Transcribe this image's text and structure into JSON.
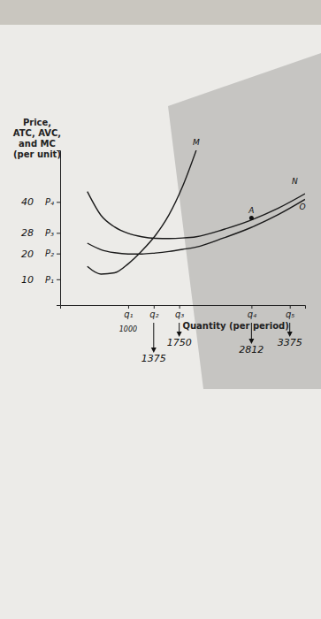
{
  "chart_data": {
    "type": "line",
    "ylabel": [
      "Price,",
      "ATC, AVC,",
      "and MC",
      "(per unit)"
    ],
    "xlabel": "Quantity (per period)",
    "x": [
      400,
      600,
      800,
      1000,
      1200,
      1400,
      1600,
      1800,
      2000,
      2400,
      2800,
      3200,
      3600
    ],
    "series": [
      {
        "color": "#1a1a1a",
        "values": [
          15,
          12,
          12.5,
          16,
          21,
          27,
          35,
          46,
          60,
          null,
          null,
          null,
          null
        ]
      },
      {
        "color": "#1a1a1a",
        "values": [
          44,
          34.8,
          30.3,
          27.8,
          26.5,
          25.9,
          25.8,
          26,
          26.5,
          29.3,
          32.9,
          37.5,
          43.2
        ]
      },
      {
        "color": "#1a1a1a",
        "values": [
          24,
          21.5,
          20.3,
          19.8,
          19.8,
          20.2,
          20.8,
          21.6,
          22.5,
          26,
          30,
          35,
          41
        ]
      }
    ],
    "xlim": [
      0,
      3600
    ],
    "ylim": [
      0,
      60
    ],
    "xticks": [
      {
        "value": 1000,
        "label": "q₁"
      },
      {
        "value": 1375,
        "label": "q₂"
      },
      {
        "value": 1750,
        "label": "q₃"
      },
      {
        "value": 2812,
        "label": "q₄"
      },
      {
        "value": 3375,
        "label": "q₅"
      }
    ],
    "yticks": [
      {
        "value": 10,
        "label": "P₁"
      },
      {
        "value": 20,
        "label": "P₂"
      },
      {
        "value": 28,
        "label": "P₃"
      },
      {
        "value": 40,
        "label": "P₄"
      }
    ],
    "annotations": [
      {
        "text": "M",
        "x": 2000,
        "y": 62
      },
      {
        "text": "A",
        "x": 2812,
        "y": 35.5
      },
      {
        "text": "N",
        "x": 3450,
        "y": 47
      },
      {
        "text": "O",
        "x": 3560,
        "y": 37
      }
    ],
    "grid": false
  }
}
